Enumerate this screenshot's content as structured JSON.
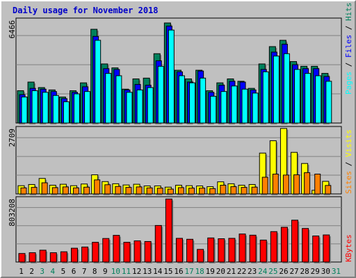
{
  "title": "Daily usage for November 2018",
  "colors": {
    "hits": "#00805c",
    "files": "#0000ff",
    "pages": "#00ffff",
    "visits": "#ffff00",
    "sites": "#ff8000",
    "kbytes": "#ff0000"
  },
  "chart_data": [
    {
      "type": "bar",
      "title": "Daily usage for November 2018",
      "categories": [
        "1",
        "2",
        "3",
        "4",
        "5",
        "6",
        "7",
        "8",
        "9",
        "10",
        "11",
        "12",
        "13",
        "14",
        "15",
        "16",
        "17",
        "18",
        "19",
        "20",
        "21",
        "22",
        "23",
        "24",
        "25",
        "26",
        "27",
        "28",
        "29",
        "30",
        "31"
      ],
      "weekend_days": [
        "3",
        "4",
        "10",
        "11",
        "17",
        "18",
        "24",
        "25",
        "31"
      ],
      "ymax_label": "6466",
      "ylim": [
        0,
        6466
      ],
      "legend": [
        "Pages",
        "/",
        "Files",
        "/",
        "Hits"
      ],
      "series": [
        {
          "name": "Hits",
          "values": [
            2050,
            2600,
            2250,
            2100,
            1650,
            2050,
            2550,
            5950,
            3750,
            3500,
            2150,
            2800,
            2850,
            4400,
            6350,
            3350,
            2800,
            3350,
            2050,
            2550,
            2800,
            2650,
            2200,
            3750,
            4850,
            5250,
            3900,
            3600,
            3600,
            3150,
            0
          ]
        },
        {
          "name": "Files",
          "values": [
            1800,
            2200,
            2150,
            2000,
            1550,
            1950,
            2300,
            5500,
            3450,
            3400,
            2100,
            2450,
            2400,
            3950,
            6150,
            3250,
            2600,
            3300,
            1950,
            2400,
            2650,
            2600,
            2100,
            3400,
            4500,
            5000,
            3700,
            3450,
            3450,
            2950,
            0
          ]
        },
        {
          "name": "Pages",
          "values": [
            1650,
            2050,
            1950,
            1750,
            1350,
            1850,
            2000,
            5250,
            3150,
            3000,
            1950,
            2100,
            2250,
            3600,
            5900,
            3000,
            2550,
            2850,
            1700,
            2000,
            2350,
            2150,
            1900,
            3250,
            4250,
            4400,
            3400,
            3150,
            3000,
            2650,
            0
          ]
        }
      ]
    },
    {
      "type": "bar",
      "categories": [
        "1",
        "2",
        "3",
        "4",
        "5",
        "6",
        "7",
        "8",
        "9",
        "10",
        "11",
        "12",
        "13",
        "14",
        "15",
        "16",
        "17",
        "18",
        "19",
        "20",
        "21",
        "22",
        "23",
        "24",
        "25",
        "26",
        "27",
        "28",
        "29",
        "30",
        "31"
      ],
      "ymax_label": "2709",
      "ylim": [
        0,
        2709
      ],
      "legend": [
        "Sites",
        "/",
        "Visits"
      ],
      "series": [
        {
          "name": "Visits",
          "values": [
            340,
            390,
            640,
            360,
            400,
            340,
            410,
            790,
            510,
            420,
            370,
            400,
            330,
            330,
            280,
            360,
            340,
            330,
            300,
            500,
            420,
            360,
            390,
            1690,
            2200,
            2709,
            1720,
            1260,
            150,
            520,
            0
          ]
        },
        {
          "name": "Sites",
          "values": [
            250,
            270,
            460,
            260,
            290,
            250,
            280,
            580,
            380,
            310,
            270,
            290,
            250,
            240,
            200,
            260,
            240,
            240,
            220,
            360,
            300,
            270,
            280,
            690,
            820,
            780,
            790,
            880,
            820,
            350,
            0
          ]
        }
      ]
    },
    {
      "type": "bar",
      "categories": [
        "1",
        "2",
        "3",
        "4",
        "5",
        "6",
        "7",
        "8",
        "9",
        "10",
        "11",
        "12",
        "13",
        "14",
        "15",
        "16",
        "17",
        "18",
        "19",
        "20",
        "21",
        "22",
        "23",
        "24",
        "25",
        "26",
        "27",
        "28",
        "29",
        "30",
        "31"
      ],
      "ymax_label": "803208",
      "ylim": [
        0,
        803208
      ],
      "legend": [
        "KBytes"
      ],
      "series": [
        {
          "name": "KBytes",
          "values": [
            108000,
            118000,
            150000,
            118000,
            130000,
            175000,
            190000,
            250000,
            298000,
            338000,
            250000,
            268000,
            260000,
            463000,
            798000,
            300000,
            288000,
            160000,
            305000,
            295000,
            300000,
            355000,
            340000,
            278000,
            385000,
            440000,
            530000,
            425000,
            330000,
            343000,
            0
          ]
        }
      ]
    }
  ]
}
